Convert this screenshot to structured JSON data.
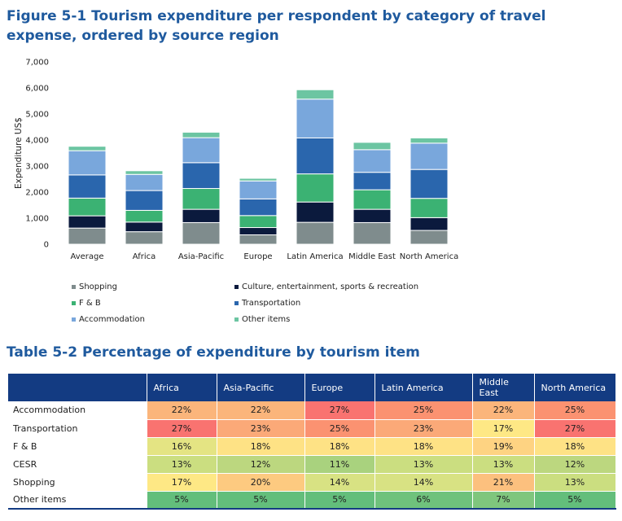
{
  "figure_title": "Figure 5-1 Tourism expenditure per respondent by category of travel expense, ordered by source region",
  "table_title": "Table 5-2 Percentage of expenditure by tourism item",
  "colors": {
    "shopping": "#7f8c8d",
    "culture": "#0b1a3d",
    "fb": "#3bb273",
    "transportation": "#2a66ad",
    "accommodation": "#79a7dc",
    "other": "#6cc5a2",
    "header_bg": "#133b82",
    "title": "#1f5a9e"
  },
  "chart_data": {
    "type": "bar",
    "stacked": true,
    "title": "Figure 5-1 Tourism expenditure per respondent by category of travel expense, ordered by source region",
    "xlabel": "",
    "ylabel": "Expenditure US$",
    "ylim": [
      0,
      7000
    ],
    "yticks": [
      "0",
      "1,000",
      "2,000",
      "3,000",
      "4,000",
      "5,000",
      "6,000",
      "7,000"
    ],
    "ytick_values": [
      0,
      1000,
      2000,
      3000,
      4000,
      5000,
      6000,
      7000
    ],
    "categories": [
      "Average",
      "Africa",
      "Asia-Pacific",
      "Europe",
      "Latin America",
      "Middle East",
      "North America"
    ],
    "series": [
      {
        "name": "Shopping",
        "color_key": "shopping",
        "values": [
          620,
          480,
          830,
          360,
          840,
          830,
          530
        ]
      },
      {
        "name": "Culture, entertainment, sports & recreation",
        "color_key": "culture",
        "values": [
          470,
          370,
          510,
          280,
          780,
          510,
          490
        ]
      },
      {
        "name": "F & B",
        "color_key": "fb",
        "values": [
          680,
          450,
          800,
          460,
          1080,
          750,
          740
        ]
      },
      {
        "name": "Transportation",
        "color_key": "transportation",
        "values": [
          890,
          760,
          990,
          640,
          1380,
          670,
          1110
        ]
      },
      {
        "name": "Accommodation",
        "color_key": "accommodation",
        "values": [
          930,
          620,
          960,
          690,
          1490,
          870,
          1010
        ]
      },
      {
        "name": "Other items",
        "color_key": "other",
        "values": [
          170,
          140,
          210,
          100,
          360,
          280,
          200
        ]
      }
    ],
    "legend_position": "bottom"
  },
  "table": {
    "columns": [
      "Africa",
      "Asia-Pacific",
      "Europe",
      "Latin America",
      "Middle East",
      "North America"
    ],
    "rows": [
      {
        "label": "Accommodation",
        "cells": [
          "22%",
          "22%",
          "27%",
          "25%",
          "22%",
          "25%"
        ],
        "colors": [
          "#fbb57b",
          "#fbb57b",
          "#f97370",
          "#fb9271",
          "#fbb57b",
          "#fb9271"
        ]
      },
      {
        "label": "Transportation",
        "cells": [
          "27%",
          "23%",
          "25%",
          "23%",
          "17%",
          "27%"
        ],
        "colors": [
          "#f97370",
          "#fba978",
          "#fb9271",
          "#fba978",
          "#fee885",
          "#f97370"
        ]
      },
      {
        "label": "F & B",
        "cells": [
          "16%",
          "18%",
          "18%",
          "18%",
          "19%",
          "18%"
        ],
        "colors": [
          "#e4e483",
          "#fee285",
          "#fee285",
          "#fee285",
          "#fed382",
          "#fee285"
        ]
      },
      {
        "label": "CESR",
        "cells": [
          "13%",
          "12%",
          "11%",
          "13%",
          "13%",
          "12%"
        ],
        "colors": [
          "#cbde80",
          "#bcd77f",
          "#a9d27e",
          "#cbde80",
          "#cbde80",
          "#bcd77f"
        ]
      },
      {
        "label": "Shopping",
        "cells": [
          "17%",
          "20%",
          "14%",
          "14%",
          "21%",
          "13%"
        ],
        "colors": [
          "#fee885",
          "#fdca80",
          "#d8e283",
          "#d8e283",
          "#fcc07e",
          "#cbde80"
        ]
      },
      {
        "label": "Other items",
        "cells": [
          "5%",
          "5%",
          "5%",
          "6%",
          "7%",
          "5%"
        ],
        "colors": [
          "#63be7b",
          "#63be7b",
          "#63be7b",
          "#6fc27c",
          "#7fc67d",
          "#63be7b"
        ]
      }
    ]
  }
}
